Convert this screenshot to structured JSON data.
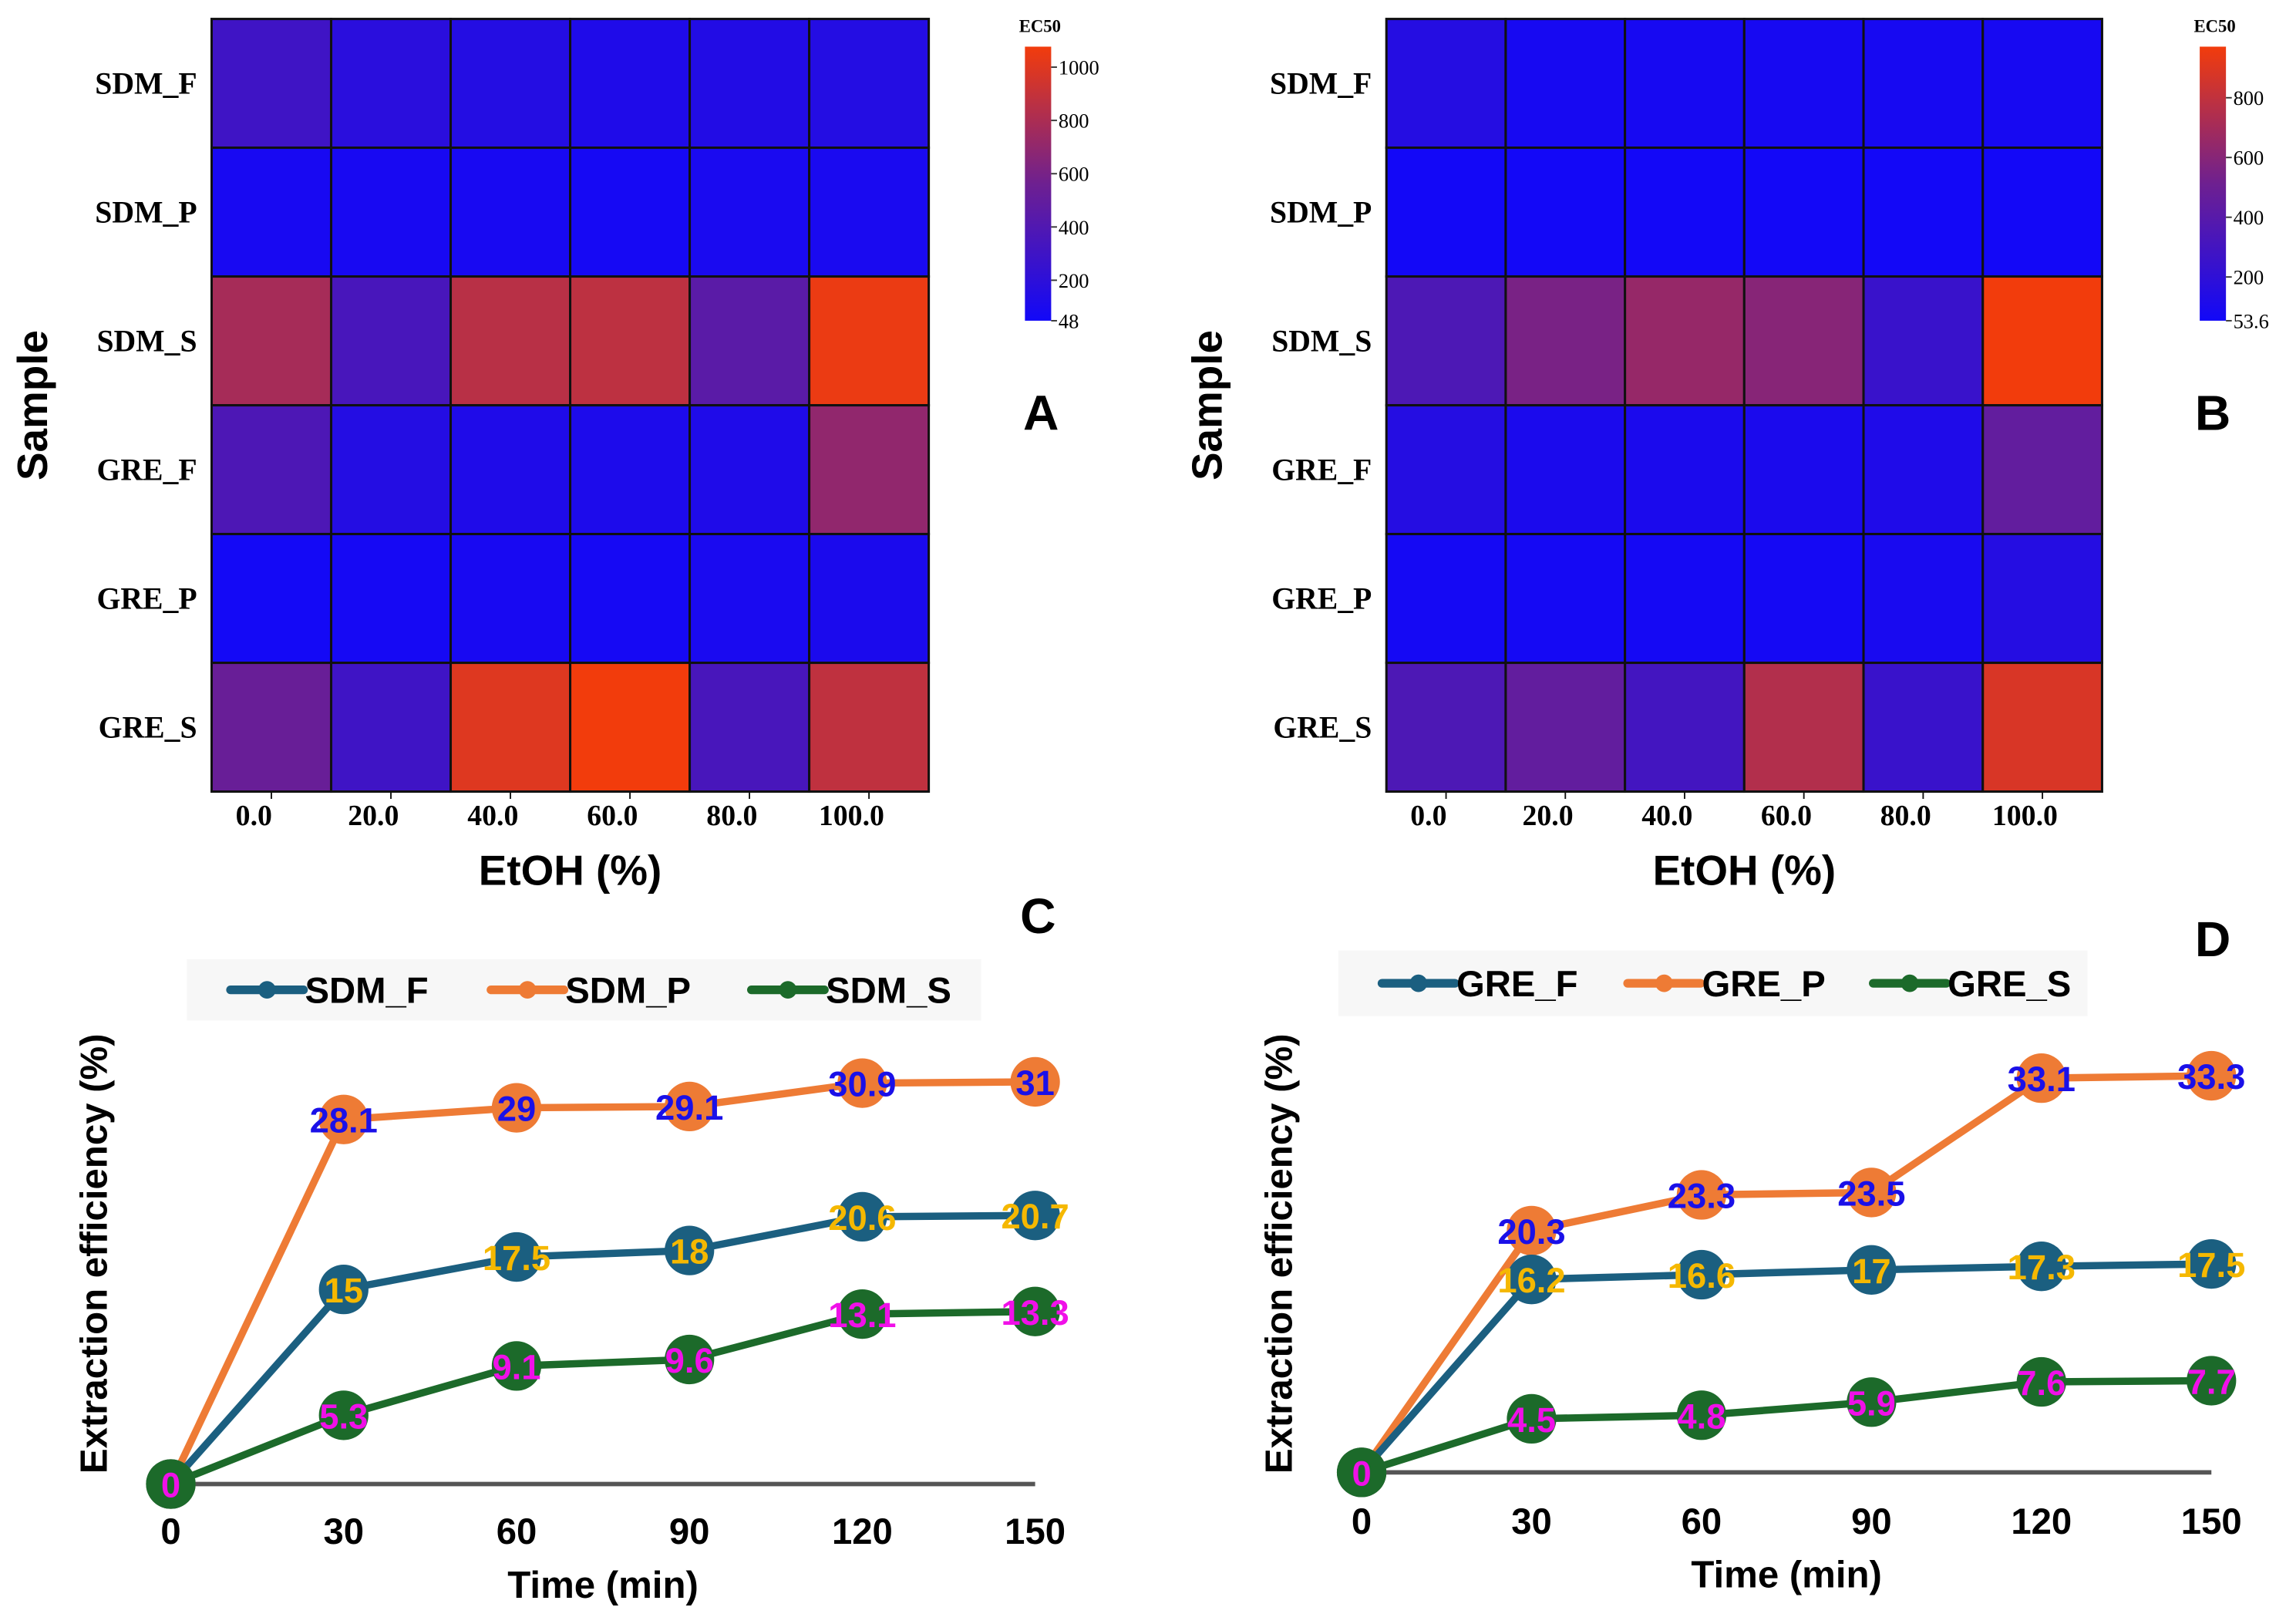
{
  "chart_data": [
    {
      "type": "heatmap",
      "panel": "A",
      "rows": [
        "SDM_F",
        "SDM_P",
        "SDM_S",
        "GRE_F",
        "GRE_P",
        "GRE_S"
      ],
      "columns": [
        "0.0",
        "20.0",
        "40.0",
        "60.0",
        "80.0",
        "100.0"
      ],
      "values": [
        [
          300,
          180,
          150,
          120,
          140,
          150
        ],
        [
          80,
          80,
          80,
          70,
          90,
          90
        ],
        [
          780,
          350,
          850,
          870,
          450,
          1050
        ],
        [
          380,
          150,
          120,
          110,
          120,
          700
        ],
        [
          60,
          70,
          80,
          70,
          90,
          100
        ],
        [
          530,
          300,
          1000,
          1077,
          350,
          880
        ]
      ],
      "xlabel": "EtOH (%)",
      "ylabel": "Sample",
      "colorbar": {
        "title": "EC50",
        "range": [
          48,
          1077
        ],
        "ticks": [
          "48",
          "200",
          "400",
          "600",
          "800",
          "1000"
        ],
        "tick_values": [
          48,
          200,
          400,
          600,
          800,
          1000
        ]
      }
    },
    {
      "type": "heatmap",
      "panel": "B",
      "rows": [
        "SDM_F",
        "SDM_P",
        "SDM_S",
        "GRE_F",
        "GRE_P",
        "GRE_S"
      ],
      "columns": [
        "0.0",
        "20.0",
        "40.0",
        "60.0",
        "80.0",
        "100.0"
      ],
      "values": [
        [
          150,
          80,
          80,
          80,
          80,
          80
        ],
        [
          60,
          60,
          60,
          60,
          60,
          60
        ],
        [
          350,
          550,
          650,
          600,
          250,
          971
        ],
        [
          150,
          100,
          100,
          100,
          120,
          450
        ],
        [
          70,
          70,
          70,
          70,
          90,
          150
        ],
        [
          350,
          450,
          300,
          750,
          250,
          880
        ]
      ],
      "xlabel": "EtOH (%)",
      "ylabel": "Sample",
      "colorbar": {
        "title": "EC50",
        "range": [
          53.6,
          971
        ],
        "ticks": [
          "53.6",
          "200",
          "400",
          "600",
          "800"
        ],
        "tick_values": [
          53.6,
          200,
          400,
          600,
          800
        ]
      }
    },
    {
      "type": "line",
      "panel": "C",
      "x": [
        0,
        30,
        60,
        90,
        120,
        150
      ],
      "x_ticks": [
        "0",
        "30",
        "60",
        "90",
        "120",
        "150"
      ],
      "xlabel": "Time (min)",
      "ylabel": "Extraction efficiency (%)",
      "ylim": [
        0,
        36
      ],
      "legend_position": "top",
      "series": [
        {
          "name": "SDM_F",
          "values": [
            0,
            15,
            17.5,
            18,
            20.6,
            20.7
          ],
          "labels": [
            "0",
            "15",
            "17.5",
            "18",
            "20.6",
            "20.7"
          ],
          "color": "#1b5f80",
          "label_color": "#f5b800"
        },
        {
          "name": "SDM_P",
          "values": [
            0,
            28.1,
            29,
            29.1,
            30.9,
            31
          ],
          "labels": [
            "0",
            "28.1",
            "29",
            "29.1",
            "30.9",
            "31"
          ],
          "color": "#ee7b35",
          "label_color": "#1a10e8"
        },
        {
          "name": "SDM_S",
          "values": [
            0,
            5.3,
            9.1,
            9.6,
            13.1,
            13.3
          ],
          "labels": [
            "0",
            "5.3",
            "9.1",
            "9.6",
            "13.1",
            "13.3"
          ],
          "color": "#1c6a2a",
          "label_color": "#f010e8"
        }
      ]
    },
    {
      "type": "line",
      "panel": "D",
      "x": [
        0,
        30,
        60,
        90,
        120,
        150
      ],
      "x_ticks": [
        "0",
        "30",
        "60",
        "90",
        "120",
        "150"
      ],
      "xlabel": "Time (min)",
      "ylabel": "Extraction efficiency (%)",
      "ylim": [
        0,
        38
      ],
      "legend_position": "top",
      "series": [
        {
          "name": "GRE_F",
          "values": [
            0,
            16.2,
            16.6,
            17,
            17.3,
            17.5
          ],
          "labels": [
            "0",
            "16.2",
            "16.6",
            "17",
            "17.3",
            "17.5"
          ],
          "color": "#1b5f80",
          "label_color": "#f5b800"
        },
        {
          "name": "GRE_P",
          "values": [
            0,
            20.3,
            23.3,
            23.5,
            33.1,
            33.3
          ],
          "labels": [
            "0",
            "20.3",
            "23.3",
            "23.5",
            "33.1",
            "33.3"
          ],
          "color": "#ee7b35",
          "label_color": "#1a10e8"
        },
        {
          "name": "GRE_S",
          "values": [
            0,
            4.5,
            4.8,
            5.9,
            7.6,
            7.7
          ],
          "labels": [
            "0",
            "4.5",
            "4.8",
            "5.9",
            "7.6",
            "7.7"
          ],
          "color": "#1c6a2a",
          "label_color": "#f010e8"
        }
      ]
    }
  ]
}
